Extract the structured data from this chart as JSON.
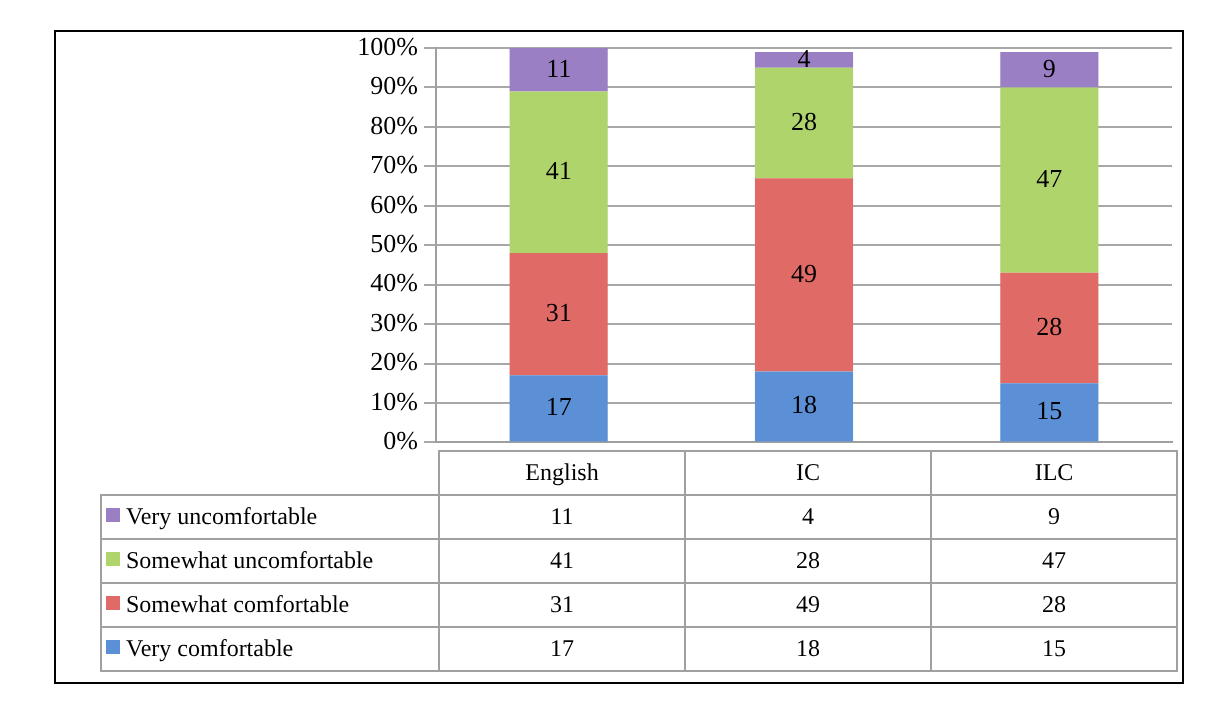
{
  "chart_data": [
    {
      "type": "bar",
      "stacked": true,
      "categories": [
        null,
        null,
        null
      ],
      "tick_labels": "y",
      "series": [
        {
          "color": "#5b8fd6",
          "values": [
            17,
            18,
            15
          ],
          "value_labels": [
            "17",
            "18",
            "15"
          ]
        },
        {
          "color": "#e06a66",
          "values": [
            31,
            49,
            28
          ],
          "value_labels": [
            "31",
            "49",
            "28"
          ]
        },
        {
          "color": "#afd46c",
          "values": [
            41,
            28,
            47
          ],
          "value_labels": [
            "41",
            "28",
            "47"
          ]
        },
        {
          "color": "#9b7fc4",
          "values": [
            11,
            4,
            9
          ],
          "value_labels": [
            "11",
            "4",
            "9"
          ]
        }
      ],
      "ylim": [
        0,
        100
      ],
      "yticks": [
        {
          "value": 0,
          "label": "0%"
        },
        {
          "value": 10,
          "label": "10%"
        },
        {
          "value": 20,
          "label": "20%"
        },
        {
          "value": 30,
          "label": "30%"
        },
        {
          "value": 40,
          "label": "40%"
        },
        {
          "value": 50,
          "label": "50%"
        },
        {
          "value": 60,
          "label": "60%"
        },
        {
          "value": 70,
          "label": "70%"
        },
        {
          "value": 80,
          "label": "80%"
        },
        {
          "value": 90,
          "label": "90%"
        },
        {
          "value": 100,
          "label": "100%"
        }
      ],
      "grid": "y"
    },
    {
      "type": "other",
      "categories": [
        "English",
        "IC",
        "ILC"
      ],
      "legend": "left",
      "data_labels": true,
      "series": [
        {
          "name": "Very uncomfortable",
          "color": "#9b7fc4",
          "values": [
            11,
            4,
            9
          ]
        },
        {
          "name": "Somewhat uncomfortable",
          "color": "#afd46c",
          "values": [
            41,
            28,
            47
          ]
        },
        {
          "name": "Somewhat comfortable",
          "color": "#e06a66",
          "values": [
            31,
            49,
            28
          ]
        },
        {
          "name": "Very comfortable",
          "color": "#5b8fd6",
          "values": [
            17,
            18,
            15
          ]
        }
      ]
    }
  ]
}
